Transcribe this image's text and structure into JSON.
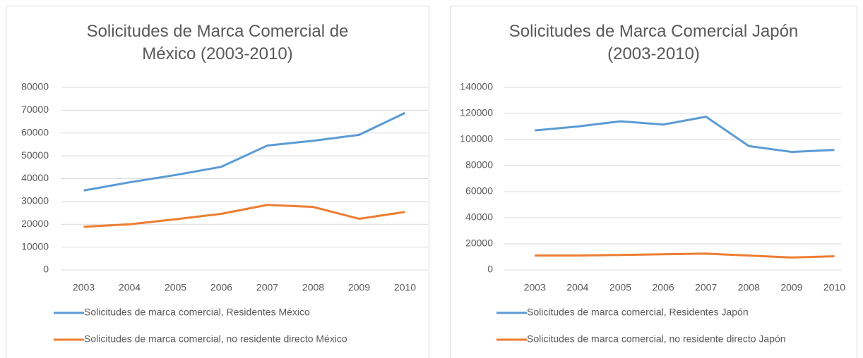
{
  "chart_data": [
    {
      "type": "line",
      "title": "Solicitudes de Marca Comercial de México (2003-2010)",
      "categories": [
        "2003",
        "2004",
        "2005",
        "2006",
        "2007",
        "2008",
        "2009",
        "2010"
      ],
      "series": [
        {
          "name": "Solicitudes de marca comercial, Residentes México",
          "color": "#5b9bd5",
          "values": [
            34800,
            38400,
            41600,
            45200,
            54500,
            56600,
            59200,
            68800
          ]
        },
        {
          "name": "Solicitudes de marca comercial, no residente directo México",
          "color": "#ed7d31",
          "values": [
            18900,
            20000,
            22200,
            24600,
            28500,
            27600,
            22400,
            25400
          ]
        }
      ],
      "ylim": [
        0,
        80000
      ],
      "yticks": [
        0,
        10000,
        20000,
        30000,
        40000,
        50000,
        60000,
        70000,
        80000
      ],
      "grid": true,
      "legend": "bottom"
    },
    {
      "type": "line",
      "title": "Solicitudes de Marca Comercial Japón (2003-2010)",
      "categories": [
        "2003",
        "2004",
        "2005",
        "2006",
        "2007",
        "2008",
        "2009",
        "2010"
      ],
      "series": [
        {
          "name": "Solicitudes de marca comercial, Residentes Japón",
          "color": "#5b9bd5",
          "values": [
            107000,
            110000,
            114000,
            111500,
            117500,
            95000,
            90500,
            92000
          ]
        },
        {
          "name": "Solicitudes de marca comercial, no residente directo Japón",
          "color": "#ed7d31",
          "values": [
            11000,
            11000,
            11500,
            12000,
            12500,
            11000,
            9500,
            10500
          ]
        }
      ],
      "ylim": [
        0,
        140000
      ],
      "yticks": [
        0,
        20000,
        40000,
        60000,
        80000,
        100000,
        120000,
        140000
      ],
      "grid": true,
      "legend": "bottom"
    }
  ]
}
